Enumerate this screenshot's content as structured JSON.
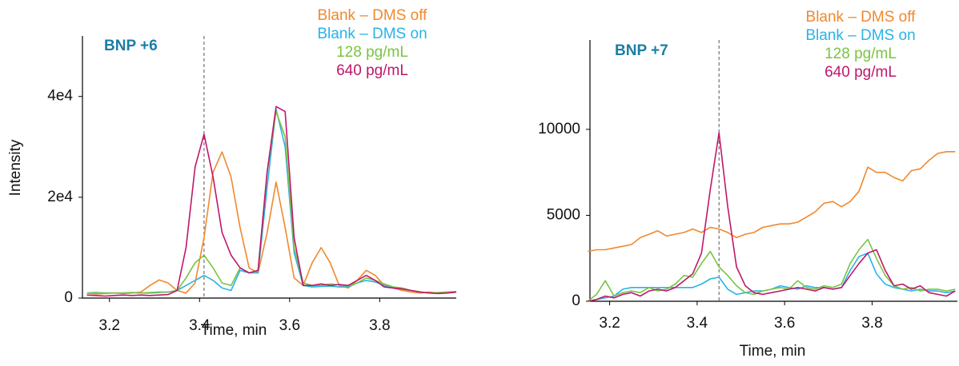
{
  "chart_data": [
    {
      "type": "line",
      "title": "BNP +6",
      "ylabel": "Intensity",
      "xlabel": "Time, min",
      "xlim": [
        3.14,
        3.97
      ],
      "ylim": [
        0,
        52000
      ],
      "xticks": [
        3.2,
        3.4,
        3.6,
        3.8
      ],
      "yticks": [
        0,
        {
          "value": 20000,
          "label": "2e4"
        },
        {
          "value": 40000,
          "label": "4e4"
        }
      ],
      "vline": 3.41,
      "legend": "upper right",
      "x": [
        3.15,
        3.17,
        3.19,
        3.21,
        3.23,
        3.25,
        3.27,
        3.29,
        3.31,
        3.33,
        3.35,
        3.37,
        3.39,
        3.41,
        3.43,
        3.45,
        3.47,
        3.49,
        3.51,
        3.53,
        3.55,
        3.57,
        3.59,
        3.61,
        3.63,
        3.65,
        3.67,
        3.69,
        3.71,
        3.73,
        3.75,
        3.77,
        3.79,
        3.81,
        3.83,
        3.85,
        3.87,
        3.89,
        3.91,
        3.93,
        3.95,
        3.97
      ],
      "series": [
        {
          "name": "Blank – DMS off",
          "color": "#f0892e",
          "values": [
            1000,
            800,
            900,
            1000,
            900,
            1000,
            1200,
            2500,
            3600,
            3000,
            1500,
            1000,
            3000,
            12000,
            25000,
            29000,
            24000,
            14000,
            6000,
            5000,
            13000,
            23000,
            14000,
            4000,
            2500,
            7000,
            10000,
            7000,
            2500,
            2000,
            3500,
            5500,
            4500,
            2500,
            2000,
            1500,
            1200,
            1000,
            1200,
            1000,
            1000,
            1200
          ]
        },
        {
          "name": "Blank – DMS on",
          "color": "#29b4e6",
          "values": [
            1000,
            1100,
            1000,
            1000,
            1000,
            1100,
            1000,
            1000,
            1100,
            1200,
            1500,
            2500,
            3500,
            4500,
            3500,
            2000,
            1500,
            5500,
            5000,
            5000,
            22000,
            37500,
            30000,
            9000,
            2500,
            2200,
            2300,
            2400,
            2200,
            2200,
            3000,
            3500,
            3200,
            2500,
            2000,
            1800,
            1500,
            1200,
            1000,
            1000,
            1100,
            1200
          ]
        },
        {
          "name": "128 pg/mL",
          "color": "#79c441",
          "values": [
            1000,
            1000,
            1000,
            1000,
            1000,
            1100,
            1000,
            1100,
            1200,
            1200,
            1500,
            4000,
            7000,
            8500,
            6000,
            3000,
            2500,
            6000,
            5000,
            5500,
            25000,
            37000,
            32000,
            10000,
            3000,
            2500,
            2500,
            2800,
            2600,
            2400,
            3000,
            4000,
            3500,
            2800,
            2200,
            2000,
            1500,
            1200,
            1000,
            1100,
            1200,
            1300
          ]
        },
        {
          "name": "640 pg/mL",
          "color": "#c0176a",
          "values": [
            600,
            500,
            400,
            500,
            600,
            500,
            600,
            500,
            600,
            700,
            1500,
            10000,
            26000,
            32500,
            24000,
            13000,
            8500,
            6000,
            5000,
            5500,
            25000,
            38000,
            37000,
            12000,
            2500,
            2500,
            2800,
            2500,
            2700,
            2500,
            3500,
            4500,
            3500,
            2200,
            2000,
            1800,
            1500,
            1200,
            1000,
            900,
            1000,
            1200
          ]
        }
      ]
    },
    {
      "type": "line",
      "title": "BNP +7",
      "xlabel": "Time, min",
      "xlim": [
        3.155,
        3.995
      ],
      "ylim": [
        0,
        15200
      ],
      "xticks": [
        3.2,
        3.4,
        3.6,
        3.8
      ],
      "yticks": [
        0,
        5000,
        10000
      ],
      "vline": 3.45,
      "legend": "upper right",
      "x": [
        3.15,
        3.17,
        3.19,
        3.21,
        3.23,
        3.25,
        3.27,
        3.29,
        3.31,
        3.33,
        3.35,
        3.37,
        3.39,
        3.41,
        3.43,
        3.45,
        3.47,
        3.49,
        3.51,
        3.53,
        3.55,
        3.57,
        3.59,
        3.61,
        3.63,
        3.65,
        3.67,
        3.69,
        3.71,
        3.73,
        3.75,
        3.77,
        3.79,
        3.81,
        3.83,
        3.85,
        3.87,
        3.89,
        3.91,
        3.93,
        3.95,
        3.97,
        3.99
      ],
      "series": [
        {
          "name": "Blank – DMS off",
          "color": "#f0892e",
          "values": [
            2900,
            3000,
            3000,
            3100,
            3200,
            3300,
            3700,
            3900,
            4100,
            3800,
            3900,
            4000,
            4200,
            4000,
            4300,
            4200,
            4000,
            3700,
            3900,
            4000,
            4300,
            4400,
            4500,
            4500,
            4600,
            4900,
            5200,
            5700,
            5800,
            5500,
            5800,
            6400,
            7800,
            7500,
            7500,
            7200,
            7000,
            7600,
            7700,
            8200,
            8600,
            8700,
            8700
          ]
        },
        {
          "name": "Blank – DMS on",
          "color": "#29b4e6",
          "values": [
            0,
            100,
            200,
            300,
            700,
            800,
            800,
            800,
            800,
            800,
            800,
            800,
            800,
            1000,
            1300,
            1400,
            700,
            400,
            500,
            600,
            600,
            700,
            900,
            800,
            700,
            900,
            800,
            800,
            700,
            800,
            1800,
            2600,
            2800,
            1600,
            1000,
            800,
            700,
            600,
            700,
            600,
            600,
            500,
            600
          ]
        },
        {
          "name": "128 pg/mL",
          "color": "#79c441",
          "values": [
            0,
            400,
            1200,
            300,
            500,
            600,
            500,
            800,
            600,
            700,
            1000,
            1500,
            1400,
            2200,
            2900,
            2000,
            1500,
            900,
            500,
            400,
            600,
            700,
            800,
            700,
            1200,
            800,
            700,
            900,
            800,
            1000,
            2200,
            3000,
            3600,
            2500,
            1500,
            900,
            700,
            800,
            600,
            700,
            700,
            600,
            700
          ]
        },
        {
          "name": "640 pg/mL",
          "color": "#c0176a",
          "values": [
            0,
            100,
            300,
            200,
            400,
            500,
            300,
            600,
            700,
            600,
            800,
            1200,
            1600,
            2800,
            6500,
            9800,
            5500,
            2000,
            900,
            500,
            400,
            500,
            600,
            700,
            800,
            700,
            600,
            800,
            700,
            800,
            1500,
            2200,
            2800,
            3000,
            1800,
            900,
            1000,
            700,
            900,
            500,
            400,
            300,
            600
          ]
        }
      ]
    }
  ]
}
